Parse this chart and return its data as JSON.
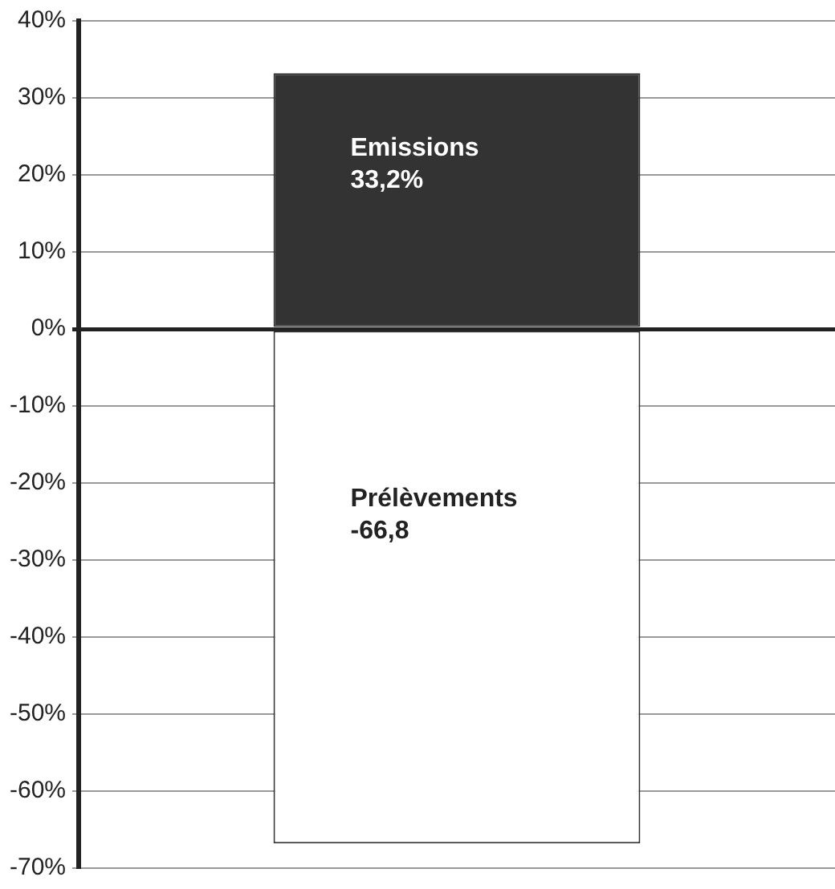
{
  "chart_data": {
    "type": "bar",
    "stacked": true,
    "categories": [
      null
    ],
    "series": [
      {
        "name": "Emissions",
        "color": "#333333",
        "values": [
          33.2
        ],
        "value_labels": [
          "33,2%"
        ]
      },
      {
        "name": "Prélèvements",
        "color": "#ffffff",
        "values": [
          -66.8
        ],
        "value_labels": [
          "-66,8"
        ]
      }
    ],
    "ylim": [
      -70,
      40
    ],
    "yticks": [
      {
        "value": -70,
        "label": "-70%"
      },
      {
        "value": -60,
        "label": "-60%"
      },
      {
        "value": -50,
        "label": "-50%"
      },
      {
        "value": -40,
        "label": "-40%"
      },
      {
        "value": -30,
        "label": "-30%"
      },
      {
        "value": -20,
        "label": "-20%"
      },
      {
        "value": -10,
        "label": "-10%"
      },
      {
        "value": 0,
        "label": "0%"
      },
      {
        "value": 10,
        "label": "10%"
      },
      {
        "value": 20,
        "label": "20%"
      },
      {
        "value": 30,
        "label": "30%"
      },
      {
        "value": 40,
        "label": "40%"
      }
    ],
    "grid": "y",
    "legend": false
  }
}
